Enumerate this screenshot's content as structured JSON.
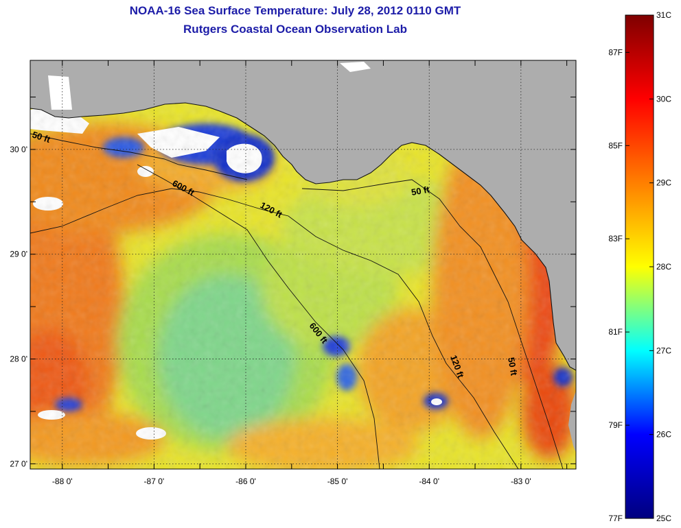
{
  "title_line1": "NOAA-16 Sea Surface Temperature:  July 28, 2012 0110 GMT",
  "title_line2": "Rutgers Coastal Ocean Observation Lab",
  "map": {
    "lat_range": [
      26.95,
      30.85
    ],
    "lon_range": [
      -88.35,
      -82.4
    ],
    "lat_ticks": [
      {
        "value": 30,
        "label": "30 0'"
      },
      {
        "value": 29,
        "label": "29 0'"
      },
      {
        "value": 28,
        "label": "28 0'"
      },
      {
        "value": 27,
        "label": "27 0'"
      }
    ],
    "lon_ticks": [
      {
        "value": -88,
        "label": "-88 0'"
      },
      {
        "value": -87,
        "label": "-87 0'"
      },
      {
        "value": -86,
        "label": "-86 0'"
      },
      {
        "value": -85,
        "label": "-85 0'"
      },
      {
        "value": -84,
        "label": "-84 0'"
      },
      {
        "value": -83,
        "label": "-83 0'"
      }
    ],
    "depth_labels": [
      "50 ft",
      "600 ft",
      "120 ft",
      "50 ft",
      "600 ft",
      "120 ft",
      "50 ft"
    ]
  },
  "colorbar": {
    "celsius_range": [
      25,
      31
    ],
    "celsius_labels": [
      "31C",
      "30C",
      "29C",
      "28C",
      "27C",
      "26C",
      "25C"
    ],
    "fahrenheit_labels": [
      "87F",
      "85F",
      "83F",
      "81F",
      "79F",
      "77F"
    ],
    "colors": [
      "#00007f",
      "#0000ff",
      "#00ffff",
      "#ffff00",
      "#ff7f00",
      "#ff0000",
      "#7f0000"
    ]
  },
  "colors": {
    "land": "#adadad",
    "cloud": "#ffffff",
    "title": "#1c1ca8"
  }
}
